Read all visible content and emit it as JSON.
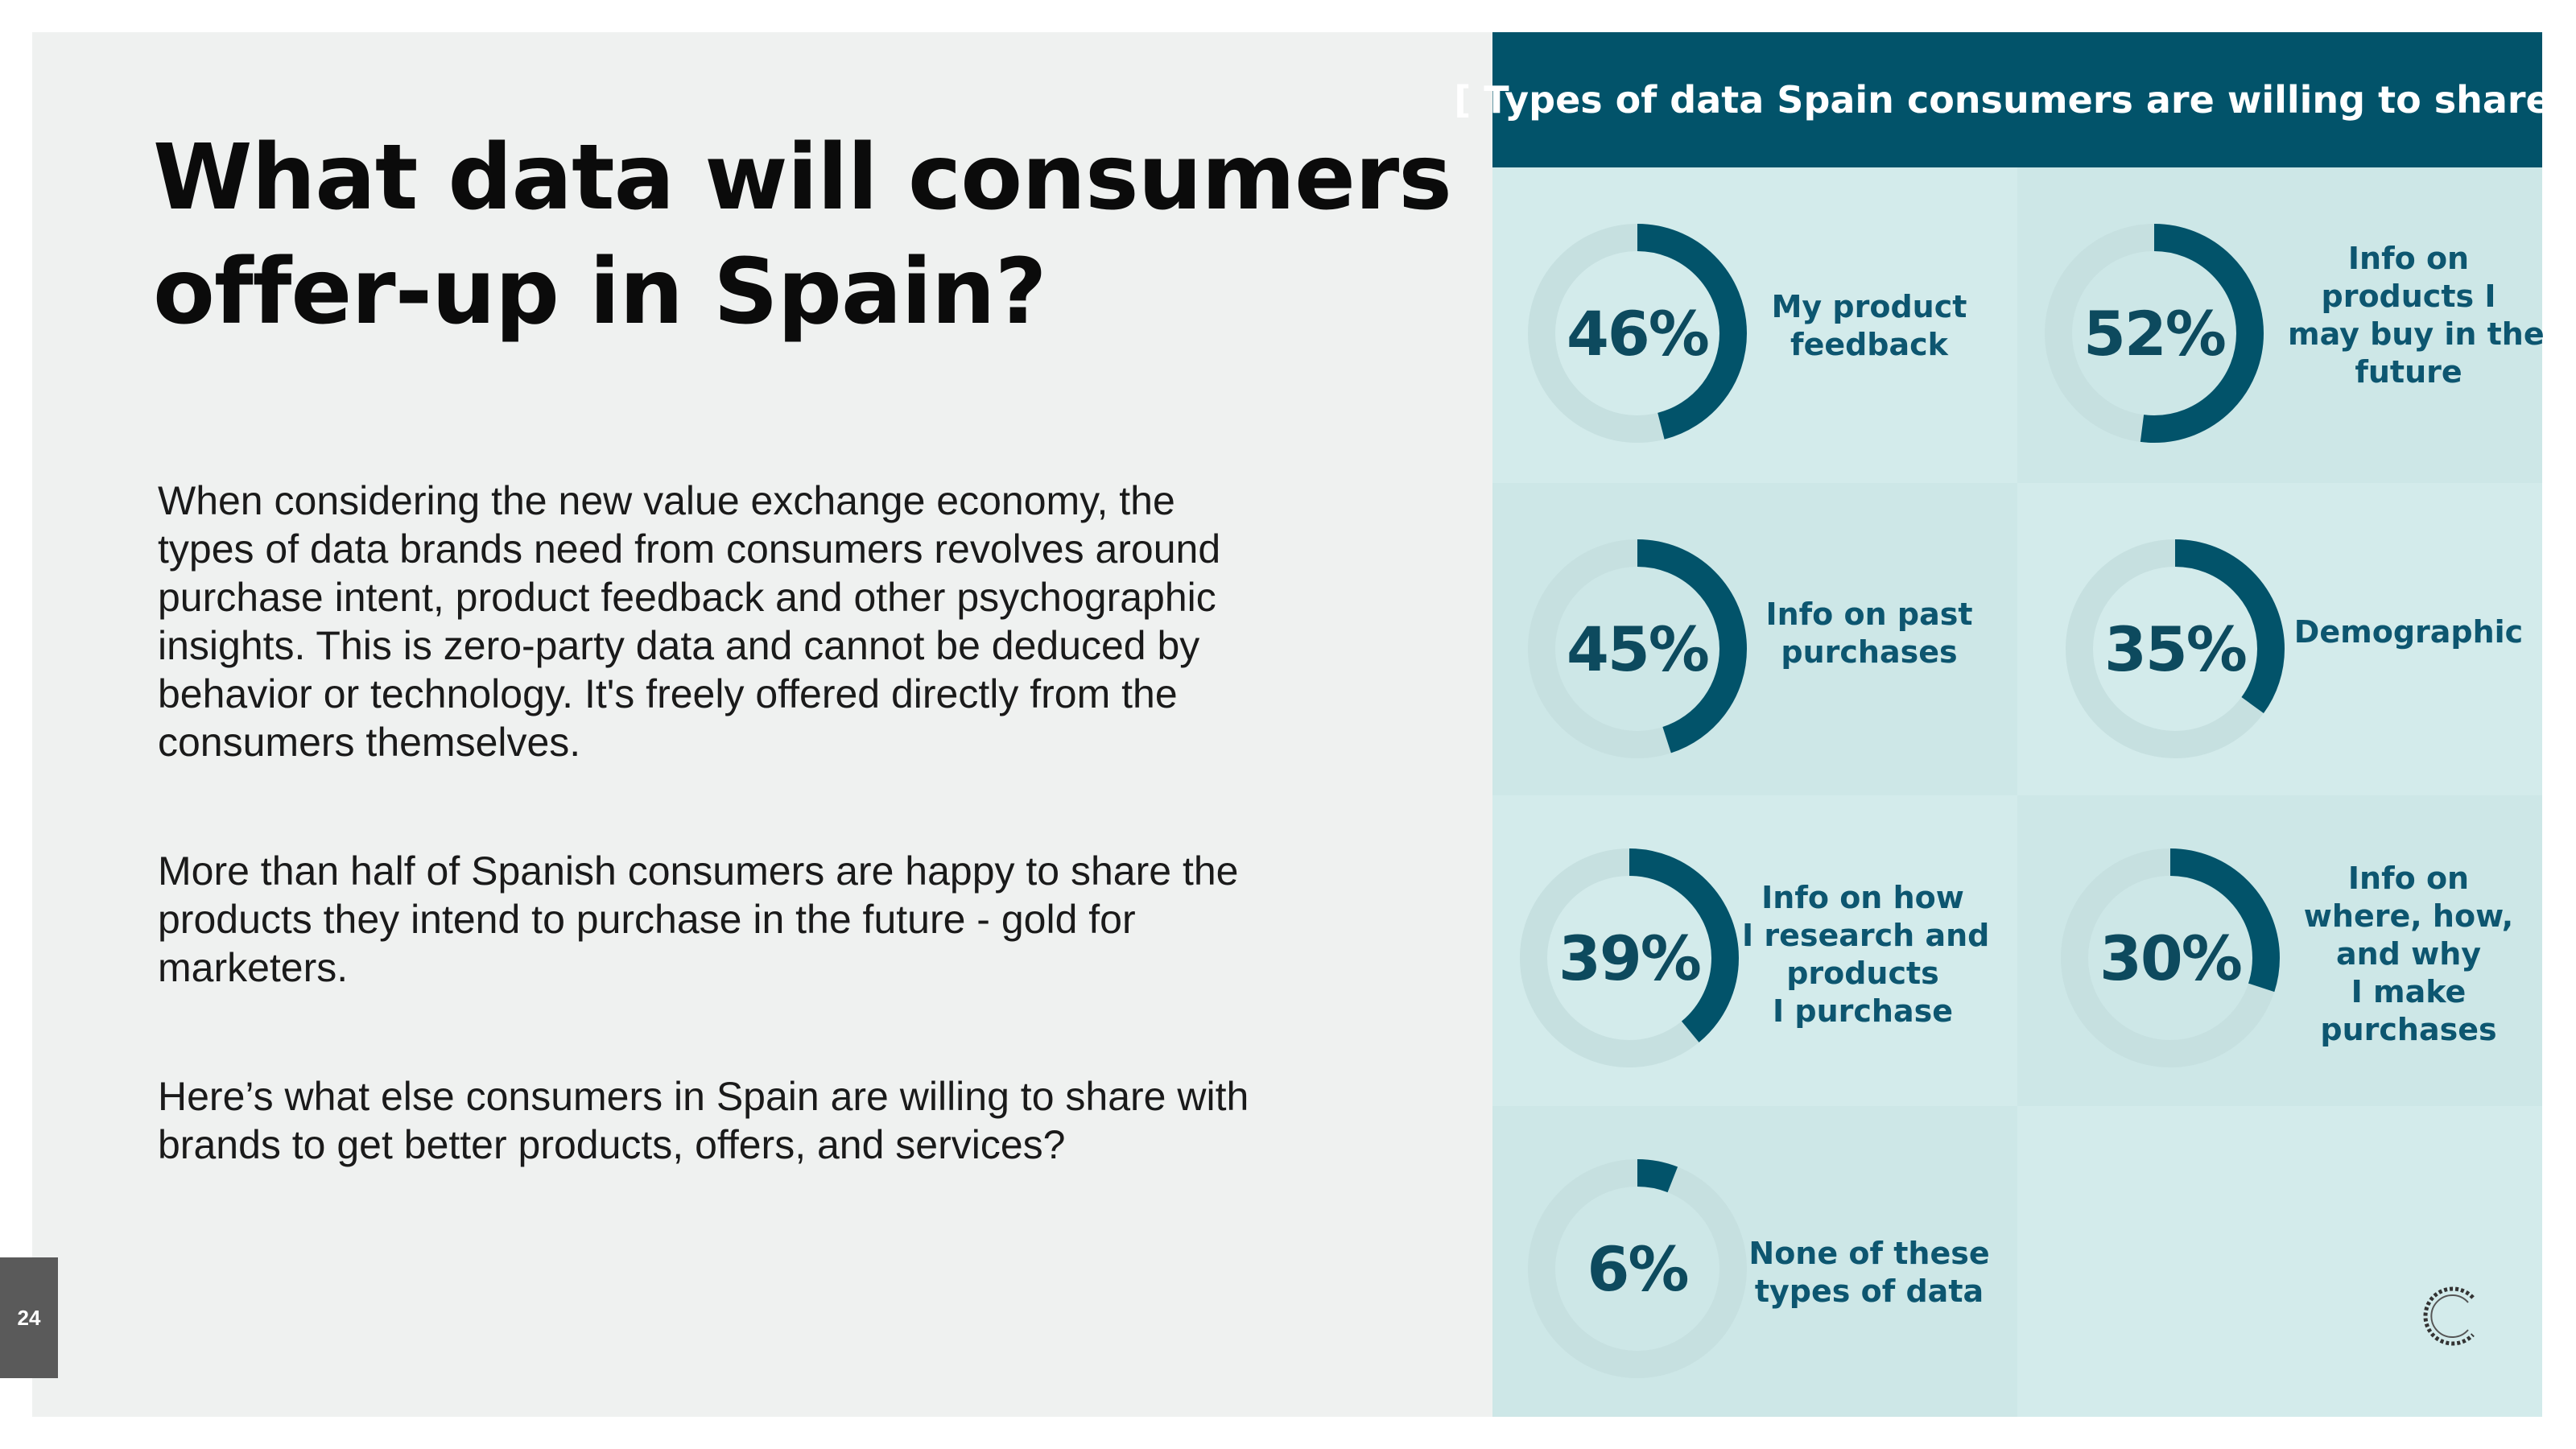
{
  "slide": {
    "title_lines": [
      "What data will consumers",
      "offer-up in Spain?"
    ],
    "paragraph_1_lines": [
      "When considering the new value exchange economy, the",
      "types of data brands need from consumers revolves around",
      "purchase intent, product feedback and other psychographic",
      "insights. This is zero-party data and cannot be deduced by",
      "behavior or technology. It's freely offered directly from the",
      "consumers themselves."
    ],
    "paragraph_2_lines": [
      "More than half of Spanish consumers are happy to share the",
      "products they intend to purchase in the future - gold for",
      "marketers."
    ],
    "paragraph_3_lines": [
      "Here’s what else consumers in Spain are willing to share with",
      "brands to get better products, offers, and services?"
    ],
    "page_number": "24"
  },
  "panel": {
    "header": "[ Types of data Spain consumers are willing to share ]"
  },
  "chart_data": {
    "type": "donut-grid",
    "title": "[ Types of data Spain consumers are willing to share ]",
    "items": [
      {
        "value": 46,
        "display": "46%",
        "label_lines": [
          "My product",
          "feedback"
        ]
      },
      {
        "value": 52,
        "display": "52%",
        "label_lines": [
          "Info on",
          "products I",
          "may buy in the",
          "future"
        ]
      },
      {
        "value": 45,
        "display": "45%",
        "label_lines": [
          "Info on past",
          "purchases"
        ]
      },
      {
        "value": 35,
        "display": "35%",
        "label_lines": [
          "Demographic"
        ]
      },
      {
        "value": 39,
        "display": "39%",
        "label_lines": [
          "Info on how",
          "I research and",
          "products",
          "I purchase"
        ]
      },
      {
        "value": 30,
        "display": "30%",
        "label_lines": [
          "Info on",
          "where, how,",
          "and why",
          "I make",
          "purchases"
        ]
      },
      {
        "value": 6,
        "display": "6%",
        "label_lines": [
          "None of these",
          "types of data"
        ]
      }
    ],
    "colors": {
      "arc": "#02536a",
      "track": "#c6e0e0",
      "cell_a": "#d3ebeb",
      "cell_b": "#cde7e7"
    }
  }
}
